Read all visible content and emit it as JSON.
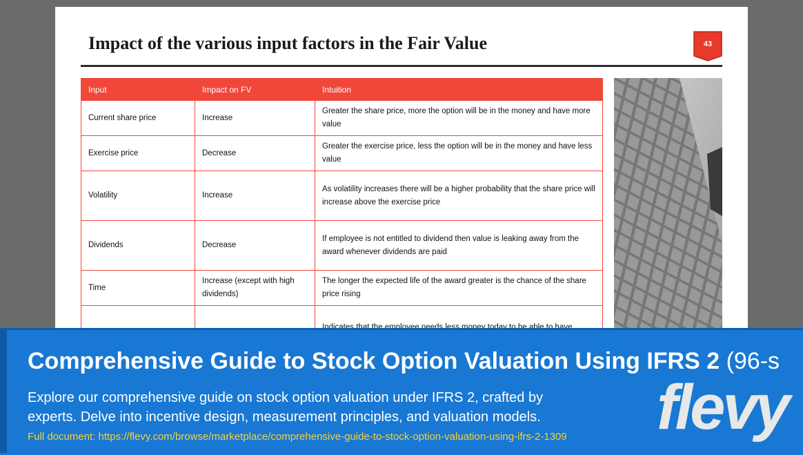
{
  "slide": {
    "title": "Impact of the various input factors in the Fair Value",
    "page_number": "43",
    "accent_color": "#f0473a",
    "table": {
      "headers": [
        "Input",
        "Impact on FV",
        "Intuition"
      ],
      "rows": [
        {
          "input": "Current share price",
          "impact": "Increase",
          "intuition": "Greater the share price, more the option will be in the money and have more value"
        },
        {
          "input": "Exercise price",
          "impact": "Decrease",
          "intuition": "Greater the exercise price, less the option will be in the money and have less value"
        },
        {
          "input": "Volatility",
          "impact": "Increase",
          "intuition": "As volatility increases there will be a higher probability that the share price will increase above the exercise price"
        },
        {
          "input": "Dividends",
          "impact": "Decrease",
          "intuition": "If employee is not entitled to dividend then value is leaking away from the award whenever dividends are paid"
        },
        {
          "input": "Time",
          "impact": "Increase (except with high dividends)",
          "intuition": "The longer the expected life of the award greater is the chance of the share price rising"
        },
        {
          "input": "",
          "impact": "",
          "intuition": "Indicates that the employee needs less money today to be able to have"
        }
      ]
    },
    "image_icon": "building-glass-facade-photo"
  },
  "banner": {
    "title_bold": "Comprehensive Guide to Stock Option Valuation Using IFRS 2",
    "title_light": " (96-s",
    "description": "Explore our comprehensive guide on stock option valuation under IFRS 2, crafted by experts. Delve into incentive design, measurement principles, and valuation models.",
    "link": "Full document: https://flevy.com/browse/marketplace/comprehensive-guide-to-stock-option-valuation-using-ifrs-2-1309",
    "logo_text": "flevy",
    "background_color": "#1878d3",
    "link_color": "#f4d03f"
  }
}
